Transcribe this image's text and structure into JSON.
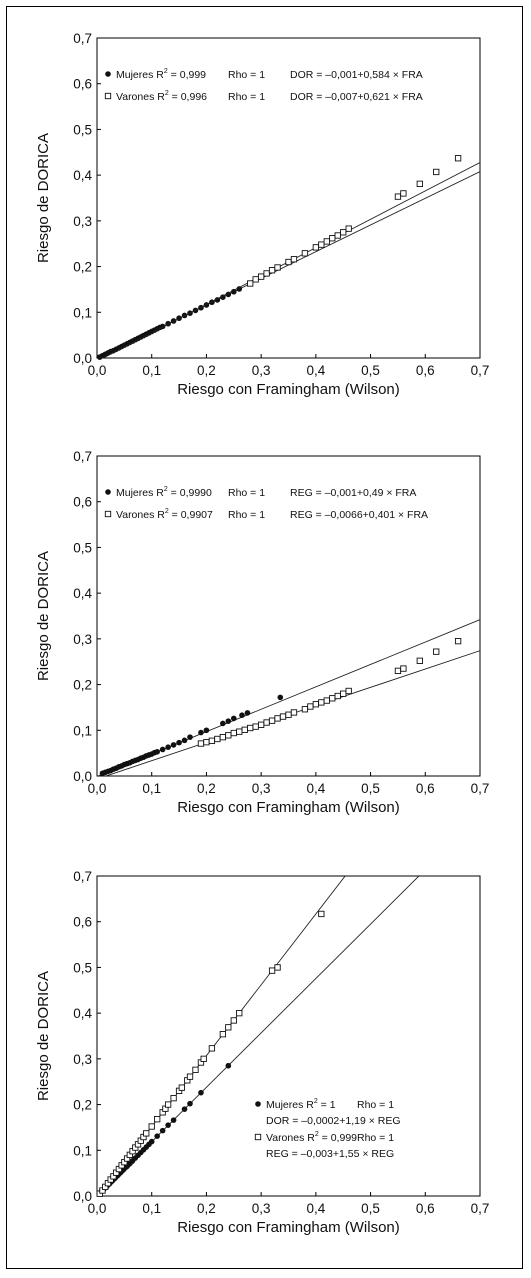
{
  "chart_data": [
    {
      "type": "scatter",
      "xlabel": "Riesgo con Framingham (Wilson)",
      "ylabel": "Riesgo de DORICA",
      "xlim": [
        0,
        0.7
      ],
      "ylim": [
        0,
        0.7
      ],
      "ticks": [
        "0,0",
        "0,1",
        "0,2",
        "0,3",
        "0,4",
        "0,5",
        "0,6",
        "0,7"
      ],
      "legend_position": "top-left",
      "series": [
        {
          "marker": "filled-circle",
          "legend": {
            "name": "Mujeres R",
            "sup": "2",
            "r2": "= 0,999",
            "rho": "Rho = 1",
            "eq": "DOR = –0,001+0,584 × FRA"
          },
          "fit": {
            "intercept": -0.001,
            "slope": 0.584
          },
          "points": [
            [
              0.005,
              0.002
            ],
            [
              0.01,
              0.005
            ],
            [
              0.015,
              0.008
            ],
            [
              0.02,
              0.011
            ],
            [
              0.025,
              0.014
            ],
            [
              0.03,
              0.016
            ],
            [
              0.035,
              0.019
            ],
            [
              0.04,
              0.022
            ],
            [
              0.045,
              0.025
            ],
            [
              0.05,
              0.028
            ],
            [
              0.055,
              0.031
            ],
            [
              0.06,
              0.034
            ],
            [
              0.065,
              0.037
            ],
            [
              0.07,
              0.04
            ],
            [
              0.075,
              0.043
            ],
            [
              0.08,
              0.046
            ],
            [
              0.085,
              0.049
            ],
            [
              0.09,
              0.052
            ],
            [
              0.095,
              0.055
            ],
            [
              0.1,
              0.058
            ],
            [
              0.105,
              0.061
            ],
            [
              0.11,
              0.064
            ],
            [
              0.115,
              0.067
            ],
            [
              0.12,
              0.069
            ],
            [
              0.13,
              0.075
            ],
            [
              0.14,
              0.081
            ],
            [
              0.15,
              0.087
            ],
            [
              0.16,
              0.093
            ],
            [
              0.17,
              0.098
            ],
            [
              0.18,
              0.104
            ],
            [
              0.19,
              0.11
            ],
            [
              0.2,
              0.116
            ],
            [
              0.21,
              0.122
            ],
            [
              0.22,
              0.127
            ],
            [
              0.23,
              0.133
            ],
            [
              0.24,
              0.139
            ],
            [
              0.25,
              0.145
            ],
            [
              0.26,
              0.151
            ]
          ]
        },
        {
          "marker": "open-square",
          "legend": {
            "name": "Varones R",
            "sup": "2",
            "r2": "= 0,996",
            "rho": "Rho = 1",
            "eq": "DOR = –0,007+0,621 × FRA"
          },
          "fit": {
            "intercept": -0.007,
            "slope": 0.621
          },
          "points": [
            [
              0.28,
              0.163
            ],
            [
              0.29,
              0.172
            ],
            [
              0.3,
              0.178
            ],
            [
              0.31,
              0.185
            ],
            [
              0.32,
              0.192
            ],
            [
              0.33,
              0.198
            ],
            [
              0.35,
              0.21
            ],
            [
              0.36,
              0.216
            ],
            [
              0.38,
              0.229
            ],
            [
              0.4,
              0.242
            ],
            [
              0.41,
              0.248
            ],
            [
              0.42,
              0.255
            ],
            [
              0.43,
              0.262
            ],
            [
              0.44,
              0.268
            ],
            [
              0.45,
              0.275
            ],
            [
              0.46,
              0.283
            ],
            [
              0.55,
              0.353
            ],
            [
              0.56,
              0.36
            ],
            [
              0.59,
              0.381
            ],
            [
              0.62,
              0.407
            ],
            [
              0.66,
              0.437
            ]
          ]
        }
      ]
    },
    {
      "type": "scatter",
      "xlabel": "Riesgo con Framingham (Wilson)",
      "ylabel": "Riesgo de DORICA",
      "xlim": [
        0,
        0.7
      ],
      "ylim": [
        0,
        0.7
      ],
      "ticks": [
        "0,0",
        "0,1",
        "0,2",
        "0,3",
        "0,4",
        "0,5",
        "0,6",
        "0,7"
      ],
      "legend_position": "top-left",
      "series": [
        {
          "marker": "filled-circle",
          "legend": {
            "name": "Mujeres R",
            "sup": "2",
            "r2": "= 0,9990",
            "rho": "Rho = 1",
            "eq": "REG = –0,001+0,49 × FRA"
          },
          "fit": {
            "intercept": -0.001,
            "slope": 0.49
          },
          "points": [
            [
              0.01,
              0.006
            ],
            [
              0.015,
              0.008
            ],
            [
              0.02,
              0.01
            ],
            [
              0.025,
              0.012
            ],
            [
              0.03,
              0.015
            ],
            [
              0.035,
              0.017
            ],
            [
              0.04,
              0.02
            ],
            [
              0.045,
              0.022
            ],
            [
              0.05,
              0.025
            ],
            [
              0.055,
              0.027
            ],
            [
              0.06,
              0.029
            ],
            [
              0.065,
              0.032
            ],
            [
              0.07,
              0.034
            ],
            [
              0.075,
              0.036
            ],
            [
              0.08,
              0.039
            ],
            [
              0.085,
              0.041
            ],
            [
              0.09,
              0.044
            ],
            [
              0.095,
              0.046
            ],
            [
              0.1,
              0.048
            ],
            [
              0.105,
              0.051
            ],
            [
              0.11,
              0.053
            ],
            [
              0.12,
              0.058
            ],
            [
              0.13,
              0.063
            ],
            [
              0.14,
              0.068
            ],
            [
              0.15,
              0.073
            ],
            [
              0.16,
              0.078
            ],
            [
              0.17,
              0.085
            ],
            [
              0.19,
              0.095
            ],
            [
              0.2,
              0.1
            ],
            [
              0.23,
              0.115
            ],
            [
              0.24,
              0.12
            ],
            [
              0.25,
              0.126
            ],
            [
              0.265,
              0.133
            ],
            [
              0.275,
              0.138
            ],
            [
              0.335,
              0.172
            ]
          ]
        },
        {
          "marker": "open-square",
          "legend": {
            "name": "Varones R",
            "sup": "2",
            "r2": "= 0,9907",
            "rho": "Rho = 1",
            "eq": "REG = –0,0066+0,401 × FRA"
          },
          "fit": {
            "intercept": -0.0066,
            "slope": 0.401
          },
          "points": [
            [
              0.19,
              0.071
            ],
            [
              0.2,
              0.074
            ],
            [
              0.21,
              0.077
            ],
            [
              0.22,
              0.081
            ],
            [
              0.23,
              0.085
            ],
            [
              0.24,
              0.089
            ],
            [
              0.25,
              0.094
            ],
            [
              0.26,
              0.097
            ],
            [
              0.27,
              0.101
            ],
            [
              0.28,
              0.105
            ],
            [
              0.29,
              0.108
            ],
            [
              0.3,
              0.112
            ],
            [
              0.31,
              0.117
            ],
            [
              0.32,
              0.121
            ],
            [
              0.33,
              0.126
            ],
            [
              0.34,
              0.13
            ],
            [
              0.35,
              0.134
            ],
            [
              0.36,
              0.139
            ],
            [
              0.38,
              0.146
            ],
            [
              0.39,
              0.152
            ],
            [
              0.4,
              0.157
            ],
            [
              0.41,
              0.161
            ],
            [
              0.42,
              0.165
            ],
            [
              0.43,
              0.17
            ],
            [
              0.44,
              0.175
            ],
            [
              0.45,
              0.18
            ],
            [
              0.46,
              0.186
            ],
            [
              0.55,
              0.23
            ],
            [
              0.56,
              0.235
            ],
            [
              0.59,
              0.252
            ],
            [
              0.62,
              0.272
            ],
            [
              0.66,
              0.295
            ]
          ]
        }
      ]
    },
    {
      "type": "scatter",
      "xlabel": "Riesgo con Framingham (Wilson)",
      "ylabel": "Riesgo de DORICA",
      "xlim": [
        0,
        0.7
      ],
      "ylim": [
        0,
        0.7
      ],
      "ticks": [
        "0,0",
        "0,1",
        "0,2",
        "0,3",
        "0,4",
        "0,5",
        "0,6",
        "0,7"
      ],
      "legend_position": "bottom-right",
      "series": [
        {
          "marker": "filled-circle",
          "legend": {
            "name": "Mujeres R",
            "sup": "2",
            "r2": "= 1",
            "rho": "Rho = 1",
            "eq": "DOR = –0,0002+1,19 × REG"
          },
          "fit": {
            "intercept": -0.0002,
            "slope": 1.19
          },
          "points": [
            [
              0.005,
              0.006
            ],
            [
              0.008,
              0.01
            ],
            [
              0.01,
              0.012
            ],
            [
              0.012,
              0.014
            ],
            [
              0.015,
              0.018
            ],
            [
              0.018,
              0.021
            ],
            [
              0.02,
              0.024
            ],
            [
              0.023,
              0.027
            ],
            [
              0.025,
              0.03
            ],
            [
              0.028,
              0.033
            ],
            [
              0.03,
              0.036
            ],
            [
              0.033,
              0.039
            ],
            [
              0.035,
              0.042
            ],
            [
              0.038,
              0.045
            ],
            [
              0.04,
              0.048
            ],
            [
              0.043,
              0.051
            ],
            [
              0.045,
              0.054
            ],
            [
              0.048,
              0.057
            ],
            [
              0.05,
              0.06
            ],
            [
              0.053,
              0.063
            ],
            [
              0.055,
              0.065
            ],
            [
              0.058,
              0.069
            ],
            [
              0.06,
              0.071
            ],
            [
              0.063,
              0.075
            ],
            [
              0.065,
              0.077
            ],
            [
              0.07,
              0.083
            ],
            [
              0.075,
              0.089
            ],
            [
              0.08,
              0.095
            ],
            [
              0.085,
              0.101
            ],
            [
              0.09,
              0.107
            ],
            [
              0.095,
              0.113
            ],
            [
              0.1,
              0.119
            ],
            [
              0.11,
              0.131
            ],
            [
              0.12,
              0.143
            ],
            [
              0.13,
              0.155
            ],
            [
              0.14,
              0.166
            ],
            [
              0.16,
              0.19
            ],
            [
              0.17,
              0.202
            ],
            [
              0.19,
              0.226
            ],
            [
              0.24,
              0.285
            ]
          ]
        },
        {
          "marker": "open-square",
          "legend": {
            "name": "Varones R",
            "sup": "2",
            "r2": "= 0,999",
            "rho": "Rho = 1",
            "eq": "REG = –0,003+1,55 × REG"
          },
          "fit": {
            "intercept": -0.003,
            "slope": 1.55
          },
          "points": [
            [
              0.005,
              0.005
            ],
            [
              0.01,
              0.012
            ],
            [
              0.015,
              0.02
            ],
            [
              0.02,
              0.028
            ],
            [
              0.025,
              0.036
            ],
            [
              0.03,
              0.043
            ],
            [
              0.035,
              0.051
            ],
            [
              0.04,
              0.059
            ],
            [
              0.045,
              0.067
            ],
            [
              0.05,
              0.074
            ],
            [
              0.055,
              0.082
            ],
            [
              0.06,
              0.09
            ],
            [
              0.065,
              0.098
            ],
            [
              0.07,
              0.106
            ],
            [
              0.075,
              0.113
            ],
            [
              0.08,
              0.121
            ],
            [
              0.085,
              0.129
            ],
            [
              0.09,
              0.137
            ],
            [
              0.1,
              0.152
            ],
            [
              0.11,
              0.168
            ],
            [
              0.12,
              0.183
            ],
            [
              0.125,
              0.191
            ],
            [
              0.13,
              0.2
            ],
            [
              0.14,
              0.214
            ],
            [
              0.15,
              0.23
            ],
            [
              0.155,
              0.237
            ],
            [
              0.165,
              0.253
            ],
            [
              0.17,
              0.261
            ],
            [
              0.18,
              0.276
            ],
            [
              0.19,
              0.292
            ],
            [
              0.195,
              0.3
            ],
            [
              0.21,
              0.323
            ],
            [
              0.23,
              0.354
            ],
            [
              0.24,
              0.369
            ],
            [
              0.25,
              0.384
            ],
            [
              0.26,
              0.4
            ],
            [
              0.32,
              0.493
            ],
            [
              0.33,
              0.5
            ],
            [
              0.41,
              0.617
            ]
          ]
        }
      ]
    }
  ]
}
